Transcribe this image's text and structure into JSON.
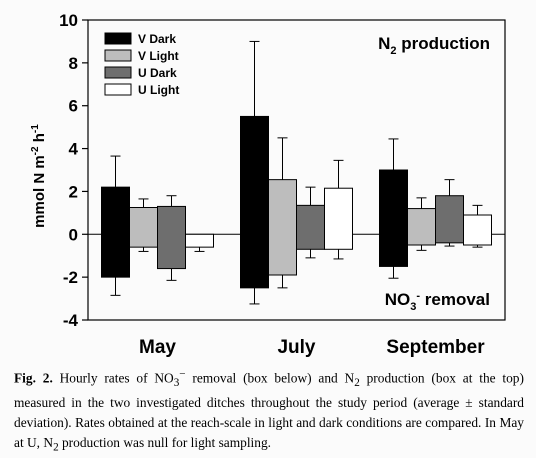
{
  "chart_data": {
    "type": "bar",
    "ylabel": "mmol N m-2 h-1",
    "ylabel_main": "mmol N m",
    "ylabel_sup1": "-2",
    "ylabel_mid": " h",
    "ylabel_sup2": "-1",
    "ylim": [
      -4,
      10
    ],
    "yticks": [
      -4,
      -2,
      0,
      2,
      4,
      6,
      8,
      10
    ],
    "categories": [
      "May",
      "July",
      "September"
    ],
    "annotation_top": {
      "main": "N",
      "sub": "2",
      "rest": " production"
    },
    "annotation_bottom": {
      "main": "NO",
      "sub": "3",
      "sup": "-",
      "rest": " removal"
    },
    "legend_position": "top-left",
    "series": [
      {
        "name": "V Dark",
        "color": "#000000",
        "production": [
          2.2,
          5.5,
          3.0
        ],
        "production_sd": [
          1.45,
          3.5,
          1.45
        ],
        "removal": [
          -2.0,
          -2.5,
          -1.5
        ],
        "removal_sd": [
          0.85,
          0.75,
          0.55
        ]
      },
      {
        "name": "V Light",
        "color": "#bdbdbd",
        "production": [
          1.25,
          2.55,
          1.2
        ],
        "production_sd": [
          0.4,
          1.95,
          0.5
        ],
        "removal": [
          -0.6,
          -1.9,
          -0.5
        ],
        "removal_sd": [
          0.2,
          0.6,
          0.25
        ]
      },
      {
        "name": "U Dark",
        "color": "#6e6e6e",
        "production": [
          1.3,
          1.35,
          1.8
        ],
        "production_sd": [
          0.5,
          0.85,
          0.75
        ],
        "removal": [
          -1.6,
          -0.7,
          -0.4
        ],
        "removal_sd": [
          0.55,
          0.4,
          0.15
        ]
      },
      {
        "name": "U Light",
        "color": "#ffffff",
        "production": [
          0,
          2.15,
          0.9
        ],
        "production_sd": [
          0,
          1.3,
          0.45
        ],
        "removal": [
          -0.6,
          -0.7,
          -0.5
        ],
        "removal_sd": [
          0.2,
          0.45,
          0.1
        ]
      }
    ]
  },
  "caption": {
    "label": "Fig. 2.",
    "t1": " Hourly rates of NO",
    "s1": "3",
    "p1": "−",
    "t2": " removal (box below) and N",
    "s2": "2",
    "t3": " production (box at the top) measured in the two investigated ditches throughout the study period (average ± standard deviation). Rates obtained at the reach-scale in light and dark conditions are compared. In May at U, N",
    "s3": "2",
    "t4": " production was null for light sampling."
  }
}
